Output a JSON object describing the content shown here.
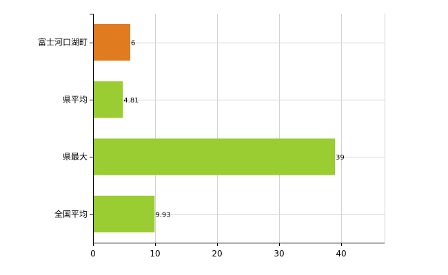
{
  "chart_data": {
    "type": "bar",
    "orientation": "horizontal",
    "categories": [
      "富士河口湖町",
      "県平均",
      "県最大",
      "全国平均"
    ],
    "values": [
      6,
      4.81,
      39,
      9.93
    ],
    "data_labels": [
      "6",
      "4.81",
      "39",
      "9.93"
    ],
    "bar_colors": [
      "#e07b20",
      "#9acd32",
      "#9acd32",
      "#9acd32"
    ],
    "highlight_color": "#e07b20",
    "default_color": "#9acd32",
    "xlim": [
      0,
      47
    ],
    "xticks": [
      0,
      10,
      20,
      30,
      40
    ],
    "xtick_labels": [
      "0",
      "10",
      "20",
      "30",
      "40"
    ],
    "grid": true,
    "title": "",
    "xlabel": "",
    "ylabel": ""
  }
}
